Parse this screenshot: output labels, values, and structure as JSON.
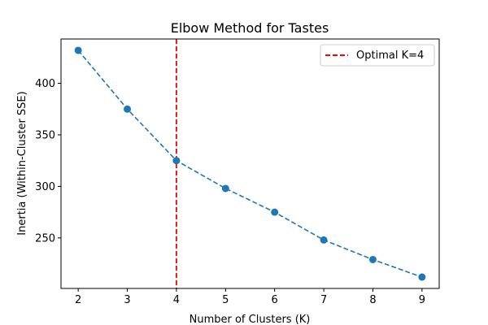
{
  "chart_data": {
    "type": "line",
    "title": "Elbow Method for Tastes",
    "xlabel": "Number of Clusters (K)",
    "ylabel": "Inertia (Within-Cluster SSE)",
    "x": [
      2,
      3,
      4,
      5,
      6,
      7,
      8,
      9
    ],
    "series": [
      {
        "values": [
          432,
          375,
          325,
          298,
          275,
          248,
          229,
          212
        ],
        "color": "#1f77b4",
        "line_style": "dashed",
        "marker": "circle"
      }
    ],
    "xlim": [
      1.65,
      9.35
    ],
    "ylim": [
      201,
      443
    ],
    "xticks": [
      2,
      3,
      4,
      5,
      6,
      7,
      8,
      9
    ],
    "yticks": [
      250,
      300,
      350,
      400
    ],
    "grid": false,
    "reference_line": {
      "orientation": "vertical",
      "x": 4,
      "label": "Optimal K=4",
      "color": "#ff0000",
      "line_style": "dashed"
    },
    "legend": {
      "placement": "top-right",
      "entries": [
        "Optimal K=4"
      ]
    }
  }
}
